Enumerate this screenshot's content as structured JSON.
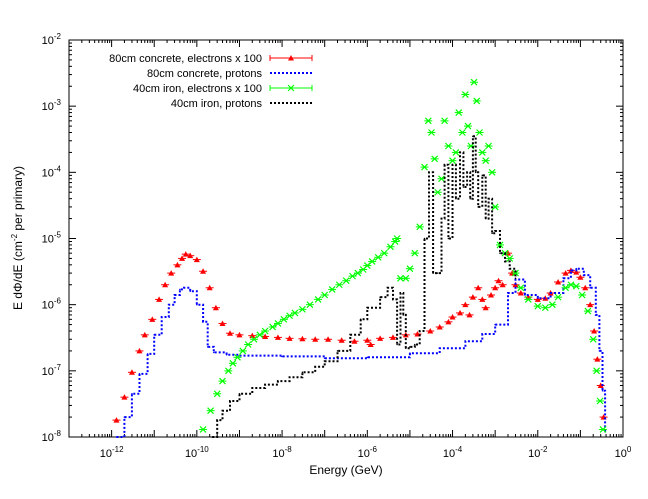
{
  "chart_data": {
    "type": "scatter",
    "title": "",
    "xlabel": "Energy (GeV)",
    "ylabel": {
      "prefix": "E dΦ/dE (cm",
      "sup": "-2",
      "suffix": " per primary)"
    },
    "x_scale": "log",
    "y_scale": "log",
    "xlim": [
      1e-13,
      1
    ],
    "ylim": [
      1e-08,
      0.01
    ],
    "grid": false,
    "legend_position": "top-left",
    "x_ticks": [
      {
        "base": "10",
        "exp": "-12",
        "value": 1e-12
      },
      {
        "base": "10",
        "exp": "-10",
        "value": 1e-10
      },
      {
        "base": "10",
        "exp": "-8",
        "value": 1e-08
      },
      {
        "base": "10",
        "exp": "-6",
        "value": 1e-06
      },
      {
        "base": "10",
        "exp": "-4",
        "value": 0.0001
      },
      {
        "base": "10",
        "exp": "-2",
        "value": 0.01
      },
      {
        "base": "10",
        "exp": "0",
        "value": 1
      }
    ],
    "y_ticks": [
      {
        "base": "10",
        "exp": "-8",
        "value": 1e-08
      },
      {
        "base": "10",
        "exp": "-7",
        "value": 1e-07
      },
      {
        "base": "10",
        "exp": "-6",
        "value": 1e-06
      },
      {
        "base": "10",
        "exp": "-5",
        "value": 1e-05
      },
      {
        "base": "10",
        "exp": "-4",
        "value": 0.0001
      },
      {
        "base": "10",
        "exp": "-3",
        "value": 0.001
      },
      {
        "base": "10",
        "exp": "-2",
        "value": 0.01
      }
    ],
    "series": [
      {
        "name": "80cm concrete, electrons x 100",
        "color": "#ff0000",
        "style": "triangle-errorbar",
        "points": [
          [
            1.3e-12,
            1.8e-08
          ],
          [
            2e-12,
            4e-08
          ],
          [
            3e-12,
            9.5e-08
          ],
          [
            4.5e-12,
            2e-07
          ],
          [
            6e-12,
            3.5e-07
          ],
          [
            9e-12,
            6e-07
          ],
          [
            1.3e-11,
            1.2e-06
          ],
          [
            1.8e-11,
            2e-06
          ],
          [
            2.5e-11,
            3e-06
          ],
          [
            3.5e-11,
            4e-06
          ],
          [
            4.5e-11,
            5e-06
          ],
          [
            5.5e-11,
            5.8e-06
          ],
          [
            7e-11,
            5.5e-06
          ],
          [
            1e-10,
            4.8e-06
          ],
          [
            1.4e-10,
            3.2e-06
          ],
          [
            2e-10,
            1.8e-06
          ],
          [
            2.8e-10,
            9e-07
          ],
          [
            4e-10,
            5.2e-07
          ],
          [
            6e-10,
            3.7e-07
          ],
          [
            1e-09,
            3.5e-07
          ],
          [
            2e-09,
            3.4e-07
          ],
          [
            4e-09,
            3.3e-07
          ],
          [
            8e-09,
            3.2e-07
          ],
          [
            1.5e-08,
            3.1e-07
          ],
          [
            3e-08,
            3.05e-07
          ],
          [
            6e-08,
            3e-07
          ],
          [
            1.2e-07,
            3e-07
          ],
          [
            2.5e-07,
            2.9e-07
          ],
          [
            5e-07,
            2.8e-07
          ],
          [
            1e-06,
            2.9e-07
          ],
          [
            1.2e-06,
            2.5e-07
          ],
          [
            2e-06,
            3.1e-07
          ],
          [
            4e-06,
            3.2e-07
          ],
          [
            8e-06,
            3.5e-07
          ],
          [
            1.5e-05,
            3.6e-07
          ],
          [
            3e-05,
            4e-07
          ],
          [
            5e-05,
            4.6e-07
          ],
          [
            8e-05,
            5.5e-07
          ],
          [
            0.0001,
            6.5e-07
          ],
          [
            0.00015,
            7.5e-07
          ],
          [
            0.0002,
            1e-06
          ],
          [
            0.00025,
            7e-07
          ],
          [
            0.0003,
            1.3e-06
          ],
          [
            0.0004,
            1.8e-06
          ],
          [
            0.0005,
            1.2e-06
          ],
          [
            0.0006,
            9e-07
          ],
          [
            0.0008,
            1.4e-06
          ],
          [
            0.001,
            1.8e-06
          ],
          [
            0.0012,
            2.3e-06
          ],
          [
            0.0015,
            2e-06
          ],
          [
            0.002,
            6e-06
          ],
          [
            0.0025,
            3e-06
          ],
          [
            0.003,
            2e-06
          ],
          [
            0.004,
            1.5e-06
          ],
          [
            0.006,
            1.3e-06
          ],
          [
            0.01,
            1.2e-06
          ],
          [
            0.015,
            1.25e-06
          ],
          [
            0.02,
            1.5e-06
          ],
          [
            0.03,
            2.2e-06
          ],
          [
            0.045,
            3e-06
          ],
          [
            0.06,
            3.3e-06
          ],
          [
            0.08,
            3.1e-06
          ],
          [
            0.1,
            2.6e-06
          ],
          [
            0.13,
            1.8e-06
          ],
          [
            0.17,
            1e-06
          ],
          [
            0.21,
            4e-07
          ],
          [
            0.25,
            1.5e-07
          ],
          [
            0.3,
            6e-08
          ],
          [
            0.35,
            2e-08
          ]
        ]
      },
      {
        "name": "80cm concrete, protons",
        "color": "#0000ff",
        "style": "dotted",
        "points": [
          [
            1.3e-12,
            1e-08
          ],
          [
            2e-12,
            2e-08
          ],
          [
            3e-12,
            4.5e-08
          ],
          [
            4.5e-12,
            9e-08
          ],
          [
            7e-12,
            1.8e-07
          ],
          [
            1e-11,
            3.5e-07
          ],
          [
            1.5e-11,
            6.5e-07
          ],
          [
            2.2e-11,
            1e-06
          ],
          [
            3e-11,
            1.4e-06
          ],
          [
            4e-11,
            1.7e-06
          ],
          [
            5e-11,
            1.8e-06
          ],
          [
            7e-11,
            1.6e-06
          ],
          [
            1e-10,
            1e-06
          ],
          [
            1.4e-10,
            5.5e-07
          ],
          [
            1.8e-10,
            2.3e-07
          ],
          [
            2.5e-10,
            1.9e-07
          ],
          [
            5e-10,
            1.75e-07
          ],
          [
            1e-09,
            1.7e-07
          ],
          [
            1e-08,
            1.65e-07
          ],
          [
            1e-07,
            1.55e-07
          ],
          [
            1e-06,
            1.6e-07
          ],
          [
            1e-05,
            1.85e-07
          ],
          [
            5e-05,
            2.2e-07
          ],
          [
            0.0002,
            2.8e-07
          ],
          [
            0.0005,
            3.6e-07
          ],
          [
            0.001,
            5e-07
          ],
          [
            0.002,
            1.5e-06
          ],
          [
            0.003,
            2.4e-06
          ],
          [
            0.005,
            1.4e-06
          ],
          [
            0.01,
            1.25e-06
          ],
          [
            0.02,
            1.5e-06
          ],
          [
            0.04,
            2.5e-06
          ],
          [
            0.06,
            3.3e-06
          ],
          [
            0.08,
            3.5e-06
          ],
          [
            0.12,
            2.8e-06
          ],
          [
            0.17,
            1.8e-06
          ],
          [
            0.23,
            7e-07
          ],
          [
            0.28,
            2e-07
          ],
          [
            0.33,
            5e-08
          ],
          [
            0.38,
            1.2e-08
          ]
        ]
      },
      {
        "name": "40cm iron, electrons x 100",
        "color": "#00ff00",
        "style": "x-errorbar",
        "points": [
          [
            1.4e-10,
            1.3e-08
          ],
          [
            2.1e-10,
            2.5e-08
          ],
          [
            3e-10,
            4.5e-08
          ],
          [
            4e-10,
            7e-08
          ],
          [
            5.5e-10,
            1e-07
          ],
          [
            7e-10,
            1.3e-07
          ],
          [
            9e-10,
            1.6e-07
          ],
          [
            1.2e-09,
            2e-07
          ],
          [
            1.6e-09,
            2.5e-07
          ],
          [
            2.2e-09,
            3e-07
          ],
          [
            3e-09,
            3.5e-07
          ],
          [
            4e-09,
            4e-07
          ],
          [
            6e-09,
            4.6e-07
          ],
          [
            8e-09,
            5.2e-07
          ],
          [
            1.1e-08,
            6e-07
          ],
          [
            1.5e-08,
            6.8e-07
          ],
          [
            2e-08,
            7.5e-07
          ],
          [
            3e-08,
            8.5e-07
          ],
          [
            4.5e-08,
            1e-06
          ],
          [
            7e-08,
            1.2e-06
          ],
          [
            1e-07,
            1.4e-06
          ],
          [
            1.5e-07,
            1.7e-06
          ],
          [
            2.2e-07,
            2e-06
          ],
          [
            3.2e-07,
            2.3e-06
          ],
          [
            4.5e-07,
            2.7e-06
          ],
          [
            6e-07,
            3e-06
          ],
          [
            8e-07,
            3.4e-06
          ],
          [
            1e-06,
            3.9e-06
          ],
          [
            1.3e-06,
            4.5e-06
          ],
          [
            1.8e-06,
            5.2e-06
          ],
          [
            2.5e-06,
            6e-06
          ],
          [
            3.5e-06,
            7.5e-06
          ],
          [
            4.5e-06,
            9e-06
          ],
          [
            5e-06,
            1e-05
          ],
          [
            6e-06,
            2.5e-06
          ],
          [
            8e-06,
            2.5e-06
          ],
          [
            1e-05,
            3.5e-06
          ],
          [
            1.3e-05,
            6e-06
          ],
          [
            1.7e-05,
            1.5e-05
          ],
          [
            2.2e-05,
            0.00012
          ],
          [
            2.7e-05,
            0.0006
          ],
          [
            3.2e-05,
            0.0004
          ],
          [
            3.8e-05,
            0.00016
          ],
          [
            4.5e-05,
            5e-05
          ],
          [
            5.5e-05,
            8e-05
          ],
          [
            6.5e-05,
            0.0006
          ],
          [
            8e-05,
            0.00025
          ],
          [
            0.0001,
            0.00015
          ],
          [
            0.00012,
            0.0002
          ],
          [
            0.00014,
            0.0008
          ],
          [
            0.00017,
            0.0004
          ],
          [
            0.0002,
            0.0015
          ],
          [
            0.00023,
            0.0005
          ],
          [
            0.00027,
            0.00025
          ],
          [
            0.00032,
            0.0023
          ],
          [
            0.00037,
            0.0012
          ],
          [
            0.00043,
            0.0004
          ],
          [
            0.0005,
            0.0002
          ],
          [
            0.0006,
            0.00015
          ],
          [
            0.0007,
            0.00025
          ],
          [
            0.00085,
            0.0001
          ],
          [
            0.001,
            3e-05
          ],
          [
            0.0013,
            8e-06
          ],
          [
            0.0017,
            6e-06
          ],
          [
            0.0022,
            5e-06
          ],
          [
            0.003,
            3e-06
          ],
          [
            0.004,
            1.8e-06
          ],
          [
            0.006,
            1.2e-06
          ],
          [
            0.01,
            9.5e-07
          ],
          [
            0.015,
            9e-07
          ],
          [
            0.022,
            1e-06
          ],
          [
            0.03,
            1.3e-06
          ],
          [
            0.045,
            1.8e-06
          ],
          [
            0.06,
            2e-06
          ],
          [
            0.08,
            1.9e-06
          ],
          [
            0.11,
            1.4e-06
          ],
          [
            0.15,
            8e-07
          ],
          [
            0.2,
            3e-07
          ],
          [
            0.24,
            1e-07
          ],
          [
            0.29,
            3.5e-08
          ],
          [
            0.34,
            1.3e-08
          ]
        ]
      },
      {
        "name": "40cm iron, protons",
        "color": "#000000",
        "style": "dotted",
        "points": [
          [
            2.3e-10,
            1e-08
          ],
          [
            3e-10,
            1.8e-08
          ],
          [
            4e-10,
            2.5e-08
          ],
          [
            6e-10,
            3.5e-08
          ],
          [
            1e-09,
            4.5e-08
          ],
          [
            2e-09,
            5.5e-08
          ],
          [
            4e-09,
            6.2e-08
          ],
          [
            8e-09,
            7e-08
          ],
          [
            1.5e-08,
            8e-08
          ],
          [
            3e-08,
            9.5e-08
          ],
          [
            6e-08,
            1.15e-07
          ],
          [
            1e-07,
            1.4e-07
          ],
          [
            2e-07,
            2e-07
          ],
          [
            4e-07,
            3.5e-07
          ],
          [
            7e-07,
            6e-07
          ],
          [
            1e-06,
            9e-07
          ],
          [
            2e-06,
            1.3e-06
          ],
          [
            3e-06,
            1.8e-06
          ],
          [
            4e-06,
            1.2e-06
          ],
          [
            5e-06,
            2.5e-07
          ],
          [
            6e-06,
            1.5e-06
          ],
          [
            7e-06,
            7e-07
          ],
          [
            8e-06,
            2.2e-07
          ],
          [
            1e-05,
            2.3e-07
          ],
          [
            1.3e-05,
            2.5e-07
          ],
          [
            1.7e-05,
            4e-07
          ],
          [
            2.2e-05,
            1e-05
          ],
          [
            2.8e-05,
            0.0001
          ],
          [
            3.5e-05,
            3e-06
          ],
          [
            4.5e-05,
            3e-06
          ],
          [
            5.5e-05,
            2e-05
          ],
          [
            6.5e-05,
            0.00013
          ],
          [
            8e-05,
            1e-05
          ],
          [
            0.0001,
            0.00013
          ],
          [
            0.00012,
            4e-05
          ],
          [
            0.00015,
            0.0002
          ],
          [
            0.00018,
            6e-05
          ],
          [
            0.00022,
            0.0001
          ],
          [
            0.00026,
            4e-05
          ],
          [
            0.0003,
            0.00035
          ],
          [
            0.00035,
            0.0001
          ],
          [
            0.0004,
            3e-05
          ],
          [
            0.0005,
            9e-05
          ],
          [
            0.0006,
            2e-05
          ],
          [
            0.0007,
            4e-05
          ],
          [
            0.00085,
            1.2e-05
          ],
          [
            0.001,
            1.3e-05
          ],
          [
            0.0013,
            6e-06
          ],
          [
            0.0017,
            4.5e-06
          ],
          [
            0.0022,
            3.5e-06
          ],
          [
            0.003,
            2.5e-06
          ]
        ]
      }
    ]
  }
}
